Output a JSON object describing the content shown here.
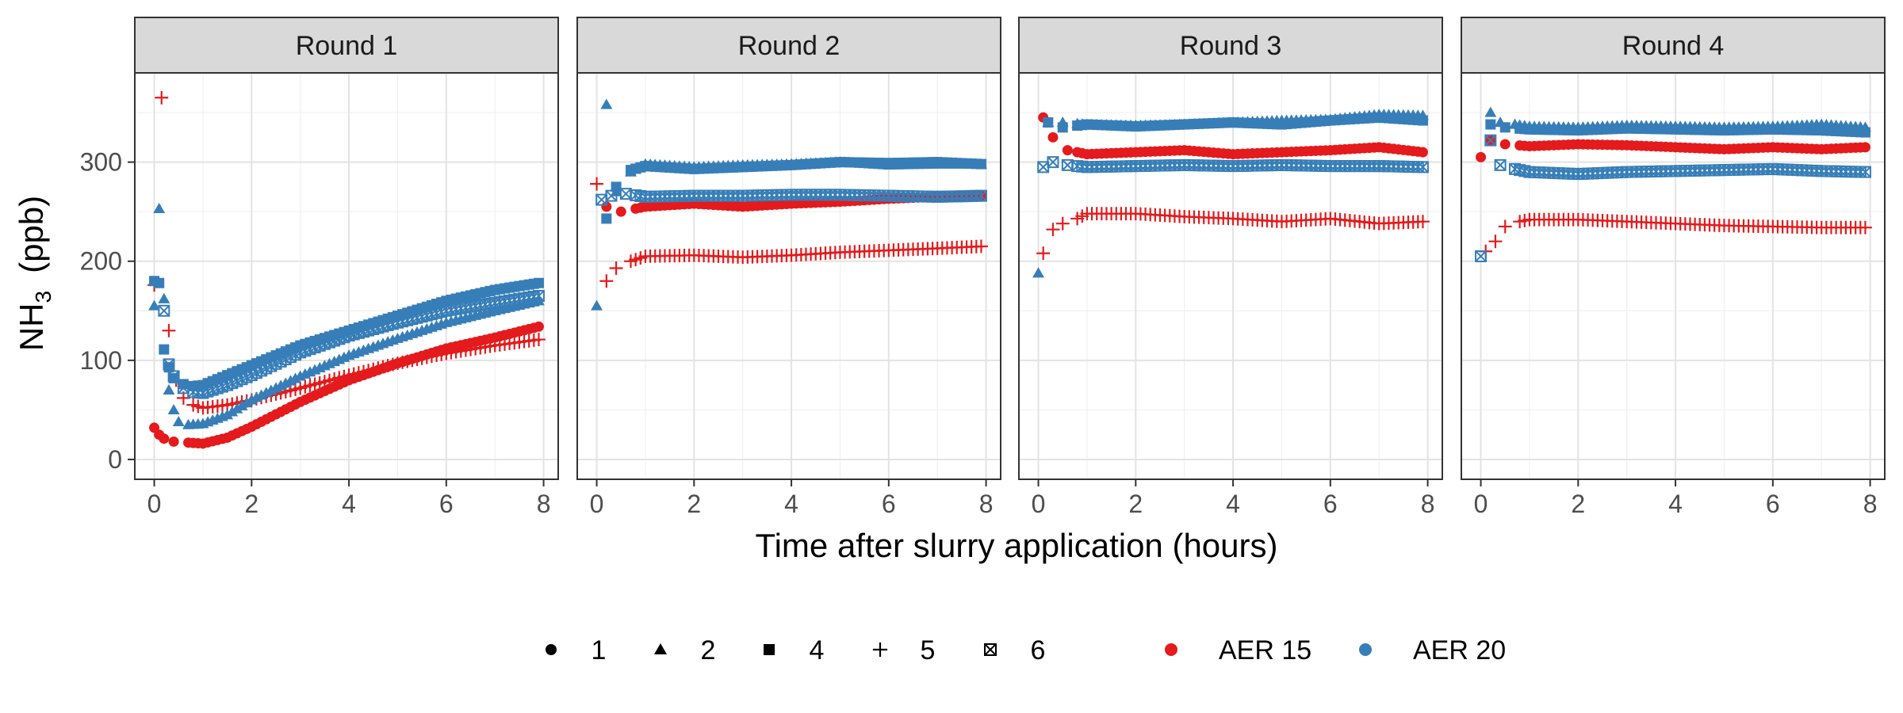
{
  "chart_data": {
    "type": "scatter",
    "facet_by": "round",
    "xlabel": "Time after slurry application (hours)",
    "ylabel_main": "NH",
    "ylabel_sub": "3",
    "ylabel_unit": "(ppb)",
    "xlim": [
      -0.4,
      8.3
    ],
    "ylim": [
      -20,
      390
    ],
    "x_ticks": [
      0,
      2,
      4,
      6,
      8
    ],
    "y_ticks": [
      0,
      100,
      200,
      300
    ],
    "grid": true,
    "legend_position": "bottom",
    "shape_legend": [
      {
        "label": "1",
        "shape": "circle"
      },
      {
        "label": "2",
        "shape": "triangle"
      },
      {
        "label": "4",
        "shape": "square"
      },
      {
        "label": "5",
        "shape": "plus"
      },
      {
        "label": "6",
        "shape": "boxx"
      }
    ],
    "color_legend": [
      {
        "label": "AER 15",
        "color": "#e41a1c"
      },
      {
        "label": "AER 20",
        "color": "#377eb8"
      }
    ],
    "panels": [
      {
        "title": "Round 1",
        "series": [
          {
            "group": "AER 15",
            "shape": "circle",
            "color": "#e41a1c",
            "x": [
              0,
              0.1,
              0.2,
              0.4,
              0.7,
              1,
              1.5,
              2,
              3,
              4,
              5,
              6,
              7,
              7.9
            ],
            "y": [
              32,
              25,
              21,
              18,
              17,
              16,
              22,
              33,
              58,
              80,
              97,
              112,
              123,
              134
            ]
          },
          {
            "group": "AER 15",
            "shape": "plus",
            "color": "#e41a1c",
            "x": [
              0,
              0.15,
              0.3,
              0.45,
              0.6,
              0.8,
              1,
              1.5,
              2,
              3,
              4,
              5,
              6,
              7,
              7.9
            ],
            "y": [
              176,
              365,
              130,
              80,
              62,
              55,
              52,
              55,
              60,
              72,
              85,
              97,
              107,
              115,
              121
            ]
          },
          {
            "group": "AER 20",
            "shape": "triangle",
            "color": "#377eb8",
            "x": [
              0,
              0.1,
              0.2,
              0.3,
              0.4,
              0.5,
              0.7,
              1,
              1.5,
              2,
              3,
              4,
              5,
              6,
              7,
              7.9
            ],
            "y": [
              155,
              253,
              162,
              70,
              50,
              38,
              35,
              36,
              45,
              60,
              84,
              105,
              122,
              138,
              150,
              160
            ]
          },
          {
            "group": "AER 20",
            "shape": "square",
            "color": "#377eb8",
            "x": [
              0,
              0.1,
              0.2,
              0.3,
              0.4,
              0.6,
              0.8,
              1,
              1.5,
              2,
              3,
              4,
              5,
              6,
              7,
              7.9
            ],
            "y": [
              180,
              178,
              111,
              93,
              82,
              76,
              74,
              75,
              85,
              95,
              115,
              130,
              145,
              160,
              171,
              178
            ]
          },
          {
            "group": "AER 20",
            "shape": "boxx",
            "color": "#377eb8",
            "x": [
              0.2,
              0.3,
              0.4,
              0.6,
              0.8,
              1,
              1.5,
              2,
              3,
              4,
              5,
              6,
              7,
              7.9
            ],
            "y": [
              150,
              96,
              84,
              72,
              68,
              67,
              75,
              85,
              108,
              125,
              138,
              150,
              158,
              165
            ]
          }
        ]
      },
      {
        "title": "Round 2",
        "series": [
          {
            "group": "AER 15",
            "shape": "circle",
            "color": "#e41a1c",
            "x": [
              0.2,
              0.5,
              1,
              2,
              3,
              4,
              5,
              6,
              7,
              7.9
            ],
            "y": [
              255,
              250,
              255,
              258,
              255,
              258,
              260,
              263,
              265,
              266
            ]
          },
          {
            "group": "AER 15",
            "shape": "plus",
            "color": "#e41a1c",
            "x": [
              0,
              0.2,
              0.4,
              0.7,
              1,
              2,
              3,
              4,
              5,
              6,
              7,
              7.9
            ],
            "y": [
              278,
              180,
              193,
              200,
              205,
              206,
              204,
              206,
              209,
              211,
              213,
              215
            ]
          },
          {
            "group": "AER 20",
            "shape": "triangle",
            "color": "#377eb8",
            "x": [
              0,
              0.2,
              0.4,
              0.7,
              1,
              2,
              3,
              4,
              5,
              6,
              7,
              7.9
            ],
            "y": [
              155,
              358,
              270,
              290,
              298,
              295,
              297,
              298,
              300,
              297,
              298,
              298
            ]
          },
          {
            "group": "AER 20",
            "shape": "square",
            "color": "#377eb8",
            "x": [
              0.2,
              0.4,
              0.7,
              1,
              2,
              3,
              4,
              5,
              6,
              7,
              7.9
            ],
            "y": [
              243,
              275,
              292,
              296,
              293,
              295,
              297,
              300,
              299,
              300,
              298
            ]
          },
          {
            "group": "AER 20",
            "shape": "boxx",
            "color": "#377eb8",
            "x": [
              0.1,
              0.3,
              0.6,
              1,
              2,
              3,
              4,
              5,
              6,
              7,
              7.9
            ],
            "y": [
              262,
              266,
              268,
              265,
              266,
              266,
              267,
              267,
              266,
              265,
              266
            ]
          }
        ]
      },
      {
        "title": "Round 3",
        "series": [
          {
            "group": "AER 15",
            "shape": "circle",
            "color": "#e41a1c",
            "x": [
              0.1,
              0.3,
              0.6,
              1,
              2,
              3,
              4,
              5,
              6,
              7,
              7.9
            ],
            "y": [
              345,
              325,
              312,
              308,
              310,
              312,
              308,
              310,
              312,
              315,
              310
            ]
          },
          {
            "group": "AER 15",
            "shape": "plus",
            "color": "#e41a1c",
            "x": [
              0.1,
              0.3,
              0.5,
              0.8,
              1,
              2,
              3,
              4,
              5,
              6,
              7,
              7.9
            ],
            "y": [
              208,
              232,
              238,
              243,
              248,
              248,
              245,
              243,
              240,
              243,
              238,
              240
            ]
          },
          {
            "group": "AER 20",
            "shape": "triangle",
            "color": "#377eb8",
            "x": [
              0,
              0.2,
              0.5,
              1,
              2,
              3,
              4,
              5,
              6,
              7,
              7.9
            ],
            "y": [
              188,
              340,
              340,
              338,
              337,
              338,
              340,
              342,
              343,
              348,
              347
            ]
          },
          {
            "group": "AER 20",
            "shape": "square",
            "color": "#377eb8",
            "x": [
              0.2,
              0.5,
              1,
              2,
              3,
              4,
              5,
              6,
              7,
              7.9
            ],
            "y": [
              340,
              335,
              338,
              336,
              338,
              340,
              338,
              342,
              345,
              342
            ]
          },
          {
            "group": "AER 20",
            "shape": "boxx",
            "color": "#377eb8",
            "x": [
              0.1,
              0.3,
              0.6,
              1,
              2,
              3,
              4,
              5,
              6,
              7,
              7.9
            ],
            "y": [
              295,
              300,
              297,
              295,
              296,
              297,
              296,
              297,
              296,
              296,
              295
            ]
          }
        ]
      },
      {
        "title": "Round 4",
        "series": [
          {
            "group": "AER 15",
            "shape": "circle",
            "color": "#e41a1c",
            "x": [
              0,
              0.2,
              0.5,
              1,
              2,
              3,
              4,
              5,
              6,
              7,
              7.9
            ],
            "y": [
              305,
              322,
              318,
              316,
              318,
              317,
              315,
              313,
              315,
              313,
              315
            ]
          },
          {
            "group": "AER 15",
            "shape": "plus",
            "color": "#e41a1c",
            "x": [
              0.1,
              0.3,
              0.5,
              0.8,
              1,
              2,
              3,
              4,
              5,
              6,
              7,
              7.9
            ],
            "y": [
              210,
              220,
              235,
              240,
              242,
              242,
              240,
              238,
              236,
              235,
              234,
              234
            ]
          },
          {
            "group": "AER 20",
            "shape": "triangle",
            "color": "#377eb8",
            "x": [
              0.2,
              0.4,
              0.7,
              1,
              2,
              3,
              4,
              5,
              6,
              7,
              7.9
            ],
            "y": [
              350,
              340,
              338,
              336,
              335,
              337,
              336,
              335,
              336,
              338,
              335
            ]
          },
          {
            "group": "AER 20",
            "shape": "square",
            "color": "#377eb8",
            "x": [
              0.2,
              0.5,
              1,
              2,
              3,
              4,
              5,
              6,
              7,
              7.9
            ],
            "y": [
              338,
              335,
              333,
              332,
              334,
              333,
              332,
              333,
              332,
              330
            ]
          },
          {
            "group": "AER 20",
            "shape": "boxx",
            "color": "#377eb8",
            "x": [
              0,
              0.2,
              0.4,
              0.7,
              1,
              2,
              3,
              4,
              5,
              6,
              7,
              7.9
            ],
            "y": [
              205,
              322,
              297,
              293,
              290,
              288,
              290,
              291,
              292,
              293,
              291,
              290
            ]
          }
        ]
      }
    ]
  }
}
